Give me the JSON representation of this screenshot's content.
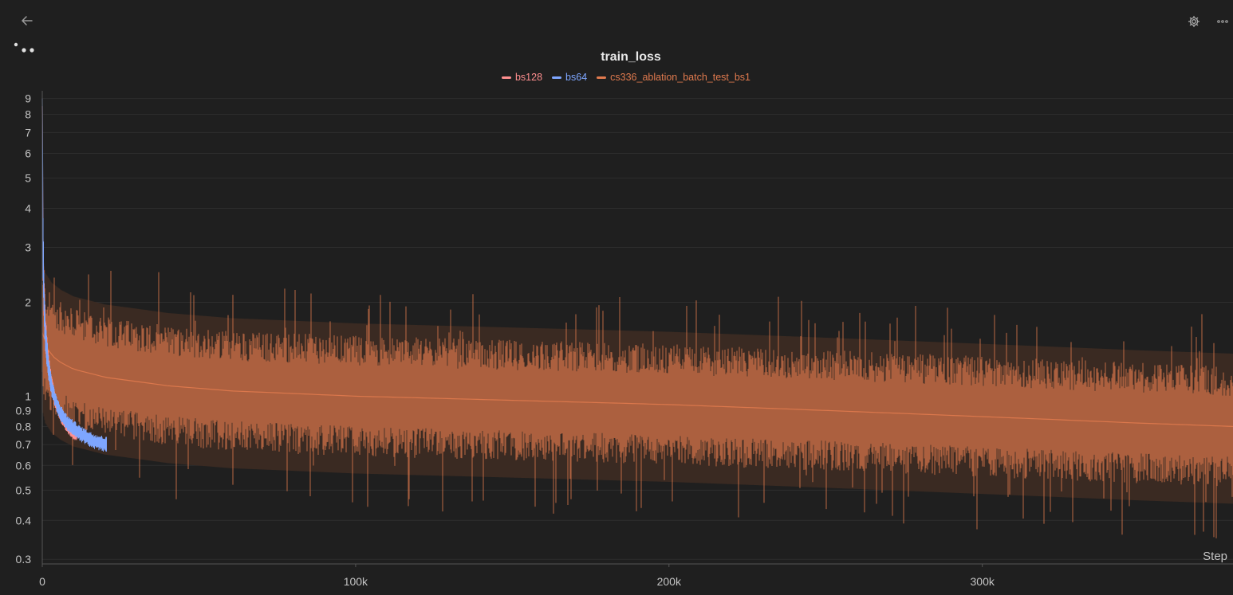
{
  "toolbar": {
    "back_icon": "arrow-left-icon",
    "settings_icon": "gear-icon",
    "more_icon": "more-horizontal-icon",
    "drag_icon": "drag-handle-icon"
  },
  "chart_data": {
    "type": "line",
    "title": "train_loss",
    "xlabel": "Step",
    "ylabel": "",
    "yscale": "log",
    "xlim": [
      0,
      380000
    ],
    "ylim": [
      0.29,
      9.3
    ],
    "x_ticks": [
      0,
      100000,
      200000,
      300000
    ],
    "x_tick_labels": [
      "0",
      "100k",
      "200k",
      "300k"
    ],
    "y_ticks": [
      0.3,
      0.4,
      0.5,
      0.6,
      0.7,
      0.8,
      0.9,
      1,
      2,
      3,
      4,
      5,
      6,
      7,
      8,
      9
    ],
    "y_tick_labels": [
      "0.3",
      "0.4",
      "0.5",
      "0.6",
      "0.7",
      "0.8",
      "0.9",
      "1",
      "2",
      "3",
      "4",
      "5",
      "6",
      "7",
      "8",
      "9"
    ],
    "grid": true,
    "legend_position": "top-center",
    "series": [
      {
        "name": "bs128",
        "color": "#ff8f8f",
        "x": [
          0,
          200,
          500,
          1000,
          2000,
          3000,
          4000,
          5000,
          6000,
          7000,
          8000,
          9000,
          10000,
          11000
        ],
        "y": [
          8.5,
          3.3,
          2.2,
          1.6,
          1.25,
          1.08,
          0.98,
          0.91,
          0.86,
          0.82,
          0.79,
          0.77,
          0.75,
          0.74
        ],
        "spread": [
          1.0,
          1.3,
          1.2,
          1.12,
          1.08,
          1.06,
          1.05,
          1.04,
          1.04,
          1.03,
          1.03,
          1.03,
          1.03,
          1.03
        ]
      },
      {
        "name": "bs64",
        "color": "#7ea6ff",
        "x": [
          0,
          200,
          500,
          1000,
          2000,
          3000,
          4000,
          5000,
          6000,
          8000,
          10000,
          12000,
          14000,
          16000,
          18000,
          20500
        ],
        "y": [
          9.0,
          3.0,
          2.1,
          1.55,
          1.22,
          1.07,
          0.98,
          0.92,
          0.88,
          0.82,
          0.79,
          0.76,
          0.74,
          0.72,
          0.71,
          0.7
        ],
        "spread": [
          1.0,
          1.3,
          1.2,
          1.12,
          1.08,
          1.06,
          1.05,
          1.05,
          1.05,
          1.05,
          1.05,
          1.05,
          1.05,
          1.05,
          1.05,
          1.05
        ]
      },
      {
        "name": "cs336_ablation_batch_test_bs1",
        "color": "#e07a4e",
        "x": [
          0,
          1000,
          3000,
          6000,
          10000,
          20000,
          40000,
          60000,
          80000,
          100000,
          150000,
          200000,
          250000,
          300000,
          350000,
          380000
        ],
        "y": [
          1.6,
          1.45,
          1.35,
          1.28,
          1.22,
          1.15,
          1.08,
          1.04,
          1.02,
          1.0,
          0.97,
          0.94,
          0.9,
          0.86,
          0.82,
          0.8
        ],
        "spread": [
          1.45,
          1.45,
          1.45,
          1.45,
          1.45,
          1.45,
          1.45,
          1.45,
          1.45,
          1.45,
          1.45,
          1.45,
          1.45,
          1.45,
          1.45,
          1.45
        ]
      }
    ]
  }
}
